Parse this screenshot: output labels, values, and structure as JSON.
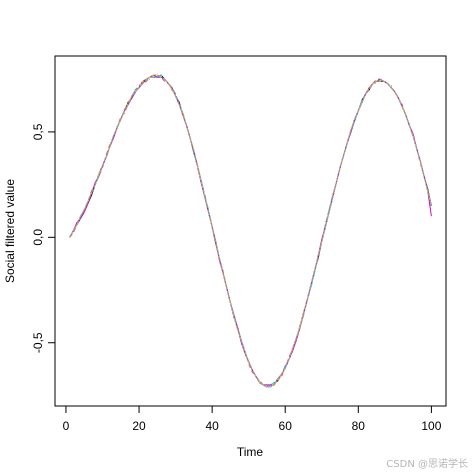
{
  "chart_data": {
    "type": "line",
    "title": "",
    "xlabel": "Time",
    "ylabel": "Social filtered value",
    "xlim": [
      -3,
      104
    ],
    "ylim": [
      -0.8,
      0.86
    ],
    "xticks": [
      0,
      20,
      40,
      60,
      80,
      100
    ],
    "xtick_labels": [
      "0",
      "20",
      "40",
      "60",
      "80",
      "100"
    ],
    "yticks": [
      -0.5,
      0.0,
      0.5
    ],
    "ytick_labels": [
      "-0,5",
      "0,0",
      "0,5"
    ],
    "grid": false,
    "legend": "none",
    "x_start": 1,
    "x_end": 100,
    "series": [
      {
        "color": "#000000",
        "dash": "",
        "values": [
          0.0,
          0.03,
          0.06,
          0.09,
          0.12,
          0.16,
          0.2,
          0.25,
          0.3,
          0.34,
          0.38,
          0.43,
          0.48,
          0.52,
          0.56,
          0.6,
          0.64,
          0.66,
          0.69,
          0.71,
          0.73,
          0.75,
          0.76,
          0.76,
          0.76,
          0.77,
          0.75,
          0.73,
          0.71,
          0.67,
          0.64,
          0.58,
          0.53,
          0.47,
          0.4,
          0.34,
          0.26,
          0.19,
          0.12,
          0.05,
          -0.03,
          -0.1,
          -0.17,
          -0.24,
          -0.31,
          -0.37,
          -0.43,
          -0.49,
          -0.55,
          -0.59,
          -0.63,
          -0.66,
          -0.69,
          -0.7,
          -0.71,
          -0.7,
          -0.69,
          -0.68,
          -0.65,
          -0.62,
          -0.58,
          -0.53,
          -0.48,
          -0.43,
          -0.36,
          -0.3,
          -0.23,
          -0.16,
          -0.1,
          -0.02,
          0.05,
          0.12,
          0.19,
          0.26,
          0.33,
          0.39,
          0.45,
          0.5,
          0.56,
          0.6,
          0.65,
          0.68,
          0.7,
          0.73,
          0.74,
          0.74,
          0.74,
          0.73,
          0.71,
          0.69,
          0.66,
          0.62,
          0.58,
          0.53,
          0.48,
          0.42,
          0.36,
          0.29,
          0.23,
          0.15
        ]
      },
      {
        "color": "#df536b",
        "dash": "4,3",
        "values": [
          0.0,
          0.02,
          0.06,
          0.1,
          0.13,
          0.17,
          0.22,
          0.25,
          0.29,
          0.33,
          0.39,
          0.44,
          0.47,
          0.52,
          0.57,
          0.59,
          0.63,
          0.67,
          0.7,
          0.72,
          0.73,
          0.74,
          0.76,
          0.77,
          0.77,
          0.76,
          0.74,
          0.73,
          0.7,
          0.67,
          0.63,
          0.59,
          0.53,
          0.47,
          0.41,
          0.33,
          0.27,
          0.2,
          0.12,
          0.05,
          -0.03,
          -0.1,
          -0.16,
          -0.24,
          -0.31,
          -0.37,
          -0.44,
          -0.49,
          -0.54,
          -0.6,
          -0.64,
          -0.66,
          -0.68,
          -0.7,
          -0.7,
          -0.71,
          -0.69,
          -0.67,
          -0.66,
          -0.62,
          -0.57,
          -0.53,
          -0.49,
          -0.43,
          -0.37,
          -0.29,
          -0.23,
          -0.17,
          -0.09,
          -0.02,
          0.06,
          0.13,
          0.2,
          0.26,
          0.33,
          0.39,
          0.45,
          0.51,
          0.55,
          0.6,
          0.64,
          0.68,
          0.71,
          0.73,
          0.75,
          0.75,
          0.74,
          0.73,
          0.71,
          0.69,
          0.66,
          0.63,
          0.58,
          0.53,
          0.49,
          0.42,
          0.35,
          0.29,
          0.22,
          0.15
        ]
      },
      {
        "color": "#61d04f",
        "dash": "1,3",
        "values": [
          0.0,
          0.03,
          0.06,
          0.09,
          0.13,
          0.17,
          0.21,
          0.25,
          0.3,
          0.34,
          0.38,
          0.43,
          0.48,
          0.53,
          0.56,
          0.61,
          0.63,
          0.66,
          0.69,
          0.72,
          0.74,
          0.75,
          0.75,
          0.77,
          0.77,
          0.76,
          0.75,
          0.73,
          0.7,
          0.68,
          0.63,
          0.59,
          0.53,
          0.47,
          0.4,
          0.34,
          0.26,
          0.19,
          0.13,
          0.05,
          -0.02,
          -0.1,
          -0.17,
          -0.24,
          -0.31,
          -0.38,
          -0.44,
          -0.5,
          -0.55,
          -0.59,
          -0.63,
          -0.66,
          -0.68,
          -0.7,
          -0.71,
          -0.7,
          -0.7,
          -0.67,
          -0.65,
          -0.62,
          -0.58,
          -0.54,
          -0.49,
          -0.42,
          -0.36,
          -0.3,
          -0.23,
          -0.17,
          -0.09,
          -0.01,
          0.06,
          0.12,
          0.19,
          0.26,
          0.33,
          0.39,
          0.45,
          0.51,
          0.56,
          0.6,
          0.64,
          0.68,
          0.71,
          0.73,
          0.73,
          0.75,
          0.74,
          0.73,
          0.72,
          0.69,
          0.66,
          0.62,
          0.58,
          0.53,
          0.48,
          0.42,
          0.36,
          0.29,
          0.22,
          0.15
        ]
      },
      {
        "color": "#2297e6",
        "dash": "6,2,1,2",
        "values": [
          0.0,
          0.03,
          0.06,
          0.1,
          0.13,
          0.17,
          0.21,
          0.25,
          0.29,
          0.34,
          0.38,
          0.43,
          0.48,
          0.52,
          0.56,
          0.6,
          0.63,
          0.66,
          0.69,
          0.71,
          0.73,
          0.75,
          0.76,
          0.76,
          0.76,
          0.76,
          0.75,
          0.73,
          0.71,
          0.68,
          0.63,
          0.58,
          0.53,
          0.47,
          0.4,
          0.34,
          0.27,
          0.2,
          0.13,
          0.05,
          -0.02,
          -0.1,
          -0.17,
          -0.24,
          -0.31,
          -0.37,
          -0.43,
          -0.49,
          -0.55,
          -0.59,
          -0.63,
          -0.66,
          -0.69,
          -0.7,
          -0.71,
          -0.71,
          -0.69,
          -0.68,
          -0.65,
          -0.61,
          -0.58,
          -0.54,
          -0.48,
          -0.42,
          -0.37,
          -0.3,
          -0.24,
          -0.17,
          -0.09,
          -0.02,
          0.06,
          0.13,
          0.2,
          0.26,
          0.33,
          0.39,
          0.45,
          0.51,
          0.55,
          0.6,
          0.64,
          0.68,
          0.71,
          0.73,
          0.74,
          0.75,
          0.74,
          0.73,
          0.71,
          0.69,
          0.66,
          0.62,
          0.58,
          0.53,
          0.48,
          0.42,
          0.36,
          0.29,
          0.22,
          0.15
        ]
      },
      {
        "color": "#28e2e5",
        "dash": "8,3",
        "values": [
          0.0,
          0.03,
          0.06,
          0.1,
          0.13,
          0.17,
          0.21,
          0.25,
          0.3,
          0.34,
          0.38,
          0.43,
          0.48,
          0.52,
          0.56,
          0.6,
          0.63,
          0.67,
          0.7,
          0.71,
          0.74,
          0.75,
          0.76,
          0.76,
          0.76,
          0.77,
          0.75,
          0.73,
          0.71,
          0.67,
          0.63,
          0.59,
          0.53,
          0.47,
          0.41,
          0.34,
          0.27,
          0.19,
          0.13,
          0.05,
          -0.02,
          -0.1,
          -0.17,
          -0.24,
          -0.31,
          -0.38,
          -0.43,
          -0.49,
          -0.54,
          -0.59,
          -0.63,
          -0.66,
          -0.69,
          -0.7,
          -0.71,
          -0.7,
          -0.69,
          -0.67,
          -0.65,
          -0.62,
          -0.58,
          -0.53,
          -0.48,
          -0.43,
          -0.36,
          -0.3,
          -0.24,
          -0.17,
          -0.09,
          -0.02,
          0.05,
          0.13,
          0.19,
          0.26,
          0.33,
          0.39,
          0.45,
          0.5,
          0.55,
          0.6,
          0.65,
          0.68,
          0.7,
          0.73,
          0.74,
          0.75,
          0.74,
          0.73,
          0.71,
          0.69,
          0.66,
          0.62,
          0.58,
          0.53,
          0.48,
          0.42,
          0.36,
          0.29,
          0.22,
          0.15
        ]
      },
      {
        "color": "#cd0bbc",
        "dash": "",
        "values": [
          0.0,
          0.03,
          0.07,
          0.09,
          0.12,
          0.16,
          0.21,
          0.26,
          0.29,
          0.34,
          0.38,
          0.43,
          0.47,
          0.52,
          0.56,
          0.6,
          0.63,
          0.66,
          0.69,
          0.71,
          0.74,
          0.75,
          0.76,
          0.77,
          0.76,
          0.76,
          0.75,
          0.73,
          0.71,
          0.67,
          0.63,
          0.58,
          0.53,
          0.47,
          0.41,
          0.34,
          0.26,
          0.19,
          0.12,
          0.05,
          -0.02,
          -0.11,
          -0.17,
          -0.24,
          -0.31,
          -0.38,
          -0.43,
          -0.5,
          -0.55,
          -0.59,
          -0.63,
          -0.66,
          -0.69,
          -0.7,
          -0.7,
          -0.7,
          -0.7,
          -0.67,
          -0.65,
          -0.62,
          -0.58,
          -0.54,
          -0.49,
          -0.43,
          -0.36,
          -0.3,
          -0.23,
          -0.16,
          -0.09,
          -0.01,
          0.05,
          0.12,
          0.19,
          0.26,
          0.33,
          0.39,
          0.45,
          0.5,
          0.56,
          0.6,
          0.64,
          0.68,
          0.71,
          0.73,
          0.74,
          0.75,
          0.74,
          0.73,
          0.71,
          0.69,
          0.66,
          0.62,
          0.58,
          0.53,
          0.49,
          0.42,
          0.36,
          0.29,
          0.22,
          0.1
        ]
      },
      {
        "color": "#f5c710",
        "dash": "2,2",
        "values": [
          0.0,
          0.03,
          0.06,
          0.1,
          0.13,
          0.17,
          0.21,
          0.25,
          0.3,
          0.34,
          0.38,
          0.43,
          0.48,
          0.52,
          0.56,
          0.6,
          0.64,
          0.67,
          0.69,
          0.71,
          0.74,
          0.75,
          0.76,
          0.77,
          0.77,
          0.76,
          0.75,
          0.73,
          0.7,
          0.67,
          0.63,
          0.59,
          0.53,
          0.47,
          0.41,
          0.34,
          0.26,
          0.19,
          0.12,
          0.05,
          -0.02,
          -0.1,
          -0.17,
          -0.24,
          -0.31,
          -0.38,
          -0.44,
          -0.49,
          -0.55,
          -0.59,
          -0.63,
          -0.66,
          -0.69,
          -0.7,
          -0.71,
          -0.71,
          -0.69,
          -0.68,
          -0.65,
          -0.62,
          -0.58,
          -0.53,
          -0.48,
          -0.42,
          -0.36,
          -0.3,
          -0.23,
          -0.16,
          -0.09,
          -0.02,
          0.05,
          0.12,
          0.19,
          0.26,
          0.33,
          0.39,
          0.45,
          0.51,
          0.56,
          0.6,
          0.64,
          0.68,
          0.71,
          0.73,
          0.74,
          0.74,
          0.74,
          0.73,
          0.71,
          0.69,
          0.66,
          0.62,
          0.58,
          0.53,
          0.48,
          0.42,
          0.36,
          0.29,
          0.22,
          0.15
        ]
      },
      {
        "color": "#9e9e9e",
        "dash": "5,2",
        "values": [
          0.0,
          0.03,
          0.06,
          0.1,
          0.13,
          0.17,
          0.21,
          0.25,
          0.29,
          0.34,
          0.38,
          0.43,
          0.48,
          0.52,
          0.56,
          0.6,
          0.63,
          0.67,
          0.69,
          0.71,
          0.73,
          0.75,
          0.76,
          0.76,
          0.77,
          0.76,
          0.75,
          0.73,
          0.71,
          0.67,
          0.63,
          0.58,
          0.53,
          0.47,
          0.41,
          0.34,
          0.27,
          0.19,
          0.12,
          0.05,
          -0.02,
          -0.1,
          -0.17,
          -0.24,
          -0.31,
          -0.37,
          -0.44,
          -0.49,
          -0.54,
          -0.59,
          -0.63,
          -0.66,
          -0.69,
          -0.7,
          -0.71,
          -0.71,
          -0.7,
          -0.67,
          -0.65,
          -0.62,
          -0.58,
          -0.53,
          -0.48,
          -0.43,
          -0.37,
          -0.3,
          -0.23,
          -0.16,
          -0.09,
          -0.02,
          0.05,
          0.12,
          0.19,
          0.26,
          0.33,
          0.39,
          0.45,
          0.51,
          0.56,
          0.6,
          0.64,
          0.68,
          0.7,
          0.73,
          0.74,
          0.75,
          0.74,
          0.73,
          0.71,
          0.69,
          0.66,
          0.62,
          0.58,
          0.53,
          0.48,
          0.42,
          0.36,
          0.29,
          0.22,
          0.15
        ]
      }
    ]
  },
  "watermark": "CSDN @思诺学长"
}
